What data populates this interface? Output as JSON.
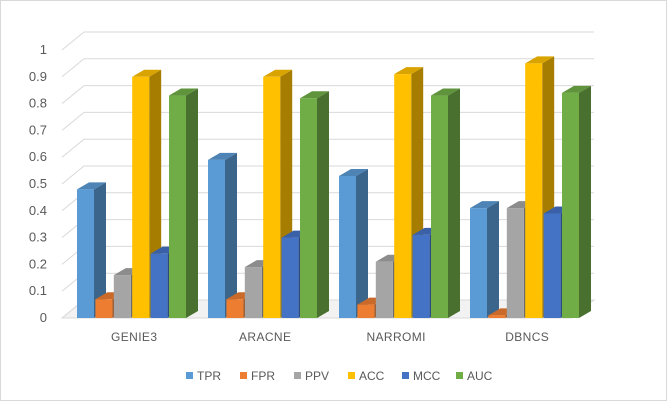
{
  "chart_data": {
    "type": "bar",
    "title": "",
    "xlabel": "",
    "ylabel": "",
    "categories": [
      "GENIE3",
      "ARACNE",
      "NARROMI",
      "DBNCS"
    ],
    "ylim": [
      0,
      1
    ],
    "yticks": [
      "0",
      "0.1",
      "0.2",
      "0.3",
      "0.4",
      "0.5",
      "0.6",
      "0.7",
      "0.8",
      "0.9",
      "1"
    ],
    "grid": true,
    "legend_position": "bottom",
    "style": "3d-clustered-column",
    "series": [
      {
        "name": "TPR",
        "color": "#5b9bd5",
        "values": [
          0.48,
          0.59,
          0.53,
          0.41
        ]
      },
      {
        "name": "FPR",
        "color": "#ed7d31",
        "values": [
          0.07,
          0.07,
          0.05,
          0.01
        ]
      },
      {
        "name": "PPV",
        "color": "#a5a5a5",
        "values": [
          0.16,
          0.19,
          0.21,
          0.41
        ]
      },
      {
        "name": "ACC",
        "color": "#ffc000",
        "values": [
          0.9,
          0.9,
          0.91,
          0.95
        ]
      },
      {
        "name": "MCC",
        "color": "#4472c4",
        "values": [
          0.24,
          0.3,
          0.31,
          0.39
        ]
      },
      {
        "name": "AUC",
        "color": "#70ad47",
        "values": [
          0.83,
          0.82,
          0.83,
          0.84
        ]
      }
    ]
  }
}
